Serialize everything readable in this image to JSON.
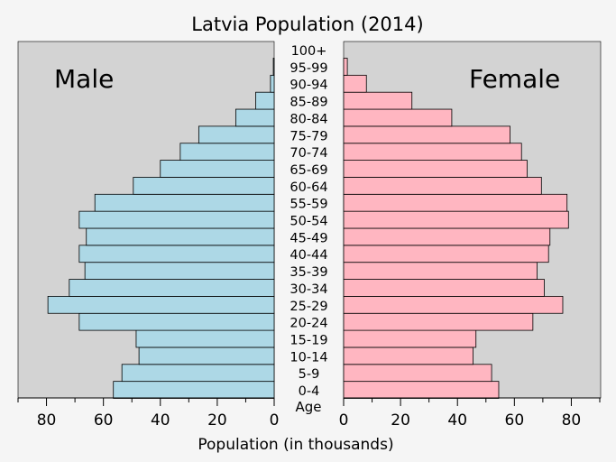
{
  "chart_data": {
    "type": "bar",
    "orientation": "horizontal-pyramid",
    "title": "Latvia Population (2014)",
    "xlabel": "Population (in thousands)",
    "age_label": "Age",
    "categories": [
      "0-4",
      "5-9",
      "10-14",
      "15-19",
      "20-24",
      "25-29",
      "30-34",
      "35-39",
      "40-44",
      "45-49",
      "50-54",
      "55-59",
      "60-64",
      "65-69",
      "70-74",
      "75-79",
      "80-84",
      "85-89",
      "90-94",
      "95-99",
      "100+"
    ],
    "xlim": [
      0,
      90
    ],
    "ticks": [
      0,
      20,
      40,
      60,
      80
    ],
    "grid": false,
    "series": [
      {
        "name": "Male",
        "color": "#add8e6",
        "values": [
          56.5,
          53.5,
          47.5,
          48.5,
          68.5,
          79.5,
          72.0,
          66.5,
          68.5,
          66.0,
          68.5,
          63.0,
          49.5,
          40.0,
          33.0,
          26.5,
          13.5,
          6.5,
          1.3,
          0.3,
          0.0
        ]
      },
      {
        "name": "Female",
        "color": "#ffb6c1",
        "values": [
          54.5,
          52.0,
          45.5,
          46.5,
          66.5,
          77.0,
          70.5,
          68.0,
          72.0,
          72.5,
          79.0,
          78.5,
          69.5,
          64.5,
          62.5,
          58.5,
          38.0,
          24.0,
          8.0,
          1.3,
          0.0
        ]
      }
    ]
  }
}
